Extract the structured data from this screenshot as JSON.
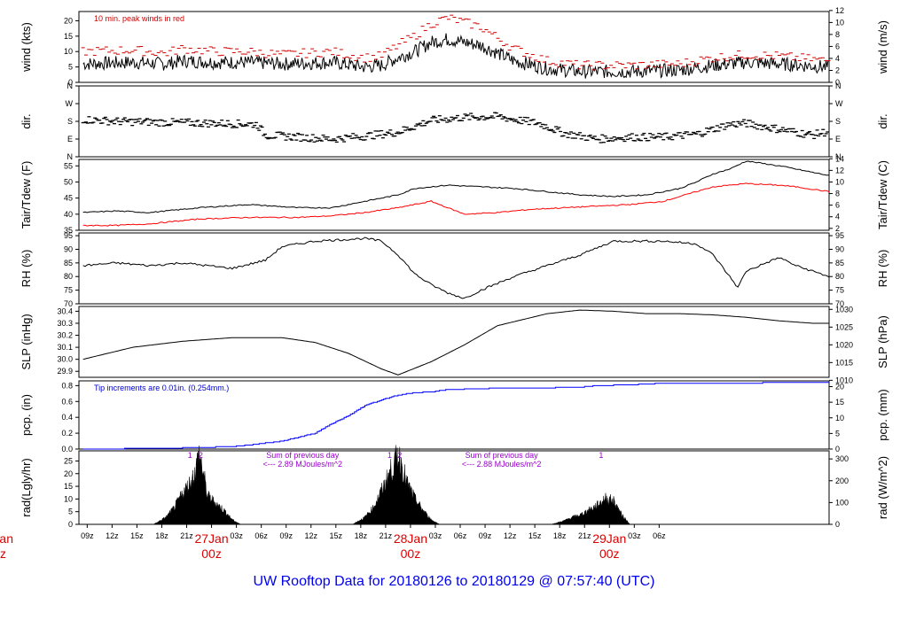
{
  "chart_data": {
    "type": "line",
    "title": "UW Rooftop Data for 20180126  to  20180129 @ 07:57:40  (UTC)",
    "x_hour_labels": [
      "09z",
      "12z",
      "15z",
      "18z",
      "21z",
      "00z",
      "03z",
      "06z",
      "09z",
      "12z",
      "15z",
      "18z",
      "21z",
      "00z",
      "03z",
      "06z",
      "09z",
      "12z",
      "15z",
      "18z",
      "21z",
      "00z",
      "03z",
      "06z"
    ],
    "date_labels": [
      {
        "day": "27Jan",
        "hour": "00z"
      },
      {
        "day": "28Jan",
        "hour": "00z"
      },
      {
        "day": "29Jan",
        "hour": "00z"
      }
    ],
    "cut_label": {
      "day": "Jan",
      "hour": "z"
    },
    "panels": [
      {
        "id": "wind",
        "ylabel": "wind (kts)",
        "ylabel_right": "wind (m/s)",
        "ylim": [
          0,
          23
        ],
        "left_ticks": [
          0,
          5,
          10,
          15,
          20
        ],
        "right_ticks": [
          0,
          2,
          4,
          6,
          8,
          10,
          12
        ],
        "right_scale": 1.944,
        "note": "10 min. peak winds in red",
        "note_color": "#d00000",
        "series": [
          {
            "name": "wind",
            "color": "#000000",
            "hours": [
              0,
              6,
              10,
              12,
              16,
              20,
              24,
              30,
              34,
              36,
              38,
              40,
              42,
              44,
              48,
              52,
              56,
              60,
              66,
              72,
              76,
              80,
              84,
              90
            ],
            "values": [
              6,
              6.5,
              6,
              7,
              6.5,
              6.5,
              6,
              6.5,
              5,
              5.5,
              8,
              10,
              13,
              14,
              12,
              7,
              4.5,
              3.5,
              3.5,
              4,
              5.5,
              6.5,
              6,
              5
            ]
          },
          {
            "name": "10 min. peak winds",
            "color": "#d00000",
            "hours": [
              0,
              6,
              10,
              12,
              16,
              20,
              24,
              30,
              34,
              36,
              38,
              40,
              42,
              44,
              48,
              52,
              56,
              60,
              66,
              72,
              76,
              80,
              84,
              90
            ],
            "values": [
              10,
              10.5,
              9.5,
              11,
              10,
              10,
              9,
              10,
              8,
              8.5,
              12,
              15,
              19,
              21,
              18,
              11,
              7,
              5.5,
              5.5,
              6,
              8,
              9,
              8.5,
              7
            ]
          }
        ]
      },
      {
        "id": "dir",
        "ylabel": "dir.",
        "ylabel_right": "dir.",
        "ylim": [
          0,
          360
        ],
        "left_tick_labels": [
          {
            "v": 0,
            "t": "N"
          },
          {
            "v": 90,
            "t": "E"
          },
          {
            "v": 180,
            "t": "S"
          },
          {
            "v": 270,
            "t": "W"
          },
          {
            "v": 360,
            "t": "N"
          }
        ],
        "right_tick_labels": [
          {
            "v": 0,
            "t": "N"
          },
          {
            "v": 90,
            "t": "E"
          },
          {
            "v": 180,
            "t": "S"
          },
          {
            "v": 270,
            "t": "W"
          },
          {
            "v": 360,
            "t": "N"
          }
        ],
        "series": [
          {
            "name": "wind direction",
            "color": "#000000",
            "hours": [
              0,
              4,
              10,
              16,
              21,
              22,
              26,
              30,
              34,
              38,
              42,
              46,
              50,
              52,
              55,
              58,
              62,
              66,
              70,
              74,
              78,
              80,
              84,
              88,
              90
            ],
            "values": [
              190,
              180,
              175,
              170,
              165,
              110,
              100,
              90,
              105,
              125,
              185,
              200,
              205,
              190,
              170,
              120,
              90,
              100,
              100,
              115,
              165,
              170,
              140,
              110,
              130
            ]
          }
        ]
      },
      {
        "id": "temp",
        "ylabel": "Tair/Tdew (F)",
        "ylabel_right": "Tair/Tdew (C)",
        "ylim": [
          35,
          57
        ],
        "left_ticks": [
          35,
          40,
          45,
          50,
          55
        ],
        "right_ticks": [
          2,
          4,
          6,
          8,
          10,
          12,
          14
        ],
        "series": [
          {
            "name": "Tair",
            "color": "#000000",
            "hours": [
              0,
              4,
              8,
              14,
              20,
              26,
              30,
              34,
              38,
              40,
              44,
              48,
              52,
              56,
              60,
              64,
              68,
              72,
              74,
              76,
              78,
              80,
              84,
              86,
              90
            ],
            "values": [
              40.5,
              41,
              40.5,
              42,
              43,
              42,
              42,
              44,
              46,
              48,
              49,
              48.5,
              48,
              47,
              46,
              45.5,
              46,
              48,
              50,
              52.5,
              54,
              56.5,
              55,
              54,
              52
            ]
          },
          {
            "name": "Tdew",
            "color": "#ff0000",
            "hours": [
              0,
              4,
              8,
              14,
              20,
              26,
              30,
              34,
              38,
              40,
              42,
              46,
              50,
              54,
              58,
              62,
              66,
              70,
              74,
              76,
              78,
              80,
              84,
              86,
              90
            ],
            "values": [
              36.5,
              36.5,
              37,
              38.5,
              39,
              39,
              39.5,
              40.5,
              42,
              43,
              44,
              40,
              40.5,
              41.5,
              42,
              42.5,
              43,
              44,
              47,
              48.5,
              49,
              49.5,
              49,
              48.5,
              47
            ]
          }
        ]
      },
      {
        "id": "rh",
        "ylabel": "RH (%)",
        "ylabel_right": "RH (%)",
        "ylim": [
          70,
          96
        ],
        "left_ticks": [
          70,
          75,
          80,
          85,
          90,
          95
        ],
        "right_ticks": [
          70,
          75,
          80,
          85,
          90,
          95
        ],
        "series": [
          {
            "name": "RH",
            "color": "#000000",
            "hours": [
              0,
              4,
              8,
              12,
              18,
              22,
              24,
              28,
              34,
              36,
              38,
              40,
              42,
              44,
              46,
              48,
              52,
              56,
              60,
              64,
              70,
              74,
              76,
              79,
              80,
              84,
              86,
              90
            ],
            "values": [
              84,
              85,
              84,
              85,
              83,
              86,
              91,
              93,
              94,
              93,
              88,
              81,
              77,
              74,
              72,
              75,
              80,
              84,
              88,
              93,
              93,
              92,
              88,
              76,
              82,
              87,
              84,
              80
            ]
          }
        ]
      },
      {
        "id": "slp",
        "ylabel": "SLP (inHg)",
        "ylabel_right": "SLP (hPa)",
        "ylim": [
          29.85,
          30.44
        ],
        "left_ticks": [
          29.9,
          30.0,
          30.1,
          30.2,
          30.3,
          30.4
        ],
        "right_ticks": [
          1010,
          1015,
          1020,
          1025,
          1030
        ],
        "series": [
          {
            "name": "SLP",
            "color": "#000000",
            "hours": [
              0,
              6,
              12,
              18,
              24,
              28,
              32,
              36,
              38,
              42,
              46,
              50,
              56,
              60,
              64,
              68,
              72,
              76,
              80,
              84,
              88,
              90
            ],
            "values": [
              30.0,
              30.1,
              30.15,
              30.18,
              30.18,
              30.14,
              30.05,
              29.92,
              29.87,
              29.98,
              30.12,
              30.28,
              30.38,
              30.41,
              30.4,
              30.38,
              30.38,
              30.37,
              30.35,
              30.32,
              30.3,
              30.3
            ]
          }
        ]
      },
      {
        "id": "pcp",
        "ylabel": "pcp. (in)",
        "ylabel_right": "pcp. (mm)",
        "ylim": [
          0,
          0.86
        ],
        "left_ticks": [
          0.0,
          0.2,
          0.4,
          0.6,
          0.8
        ],
        "right_ticks": [
          0,
          5,
          10,
          15,
          20
        ],
        "note": "Tip increments are 0.01in. (0.254mm.)",
        "note_color": "#0000cc",
        "series": [
          {
            "name": "precipitation",
            "color": "#0000ff",
            "hours": [
              0,
              10,
              14,
              18,
              20,
              24,
              28,
              30,
              32,
              34,
              36,
              38,
              40,
              42,
              44,
              48,
              50,
              54,
              60,
              62,
              66,
              70,
              80,
              84,
              90
            ],
            "values": [
              0,
              0.01,
              0.02,
              0.03,
              0.05,
              0.1,
              0.2,
              0.32,
              0.42,
              0.55,
              0.62,
              0.68,
              0.71,
              0.72,
              0.75,
              0.76,
              0.77,
              0.77,
              0.78,
              0.8,
              0.81,
              0.83,
              0.83,
              0.84,
              0.84
            ]
          }
        ]
      },
      {
        "id": "rad",
        "ylabel": "rad(Lgly/hr)",
        "ylabel_right": "rad (W/m^2)",
        "ylim": [
          0,
          29
        ],
        "left_ticks": [
          0,
          5,
          10,
          15,
          20,
          25
        ],
        "right_ticks": [
          0,
          100,
          200,
          300
        ],
        "right_tick_values_in_left_units": [
          0,
          8.6,
          17.2,
          25.8
        ],
        "days": [
          {
            "hours": [
              8.5,
              10,
              11,
              12,
              13,
              13.5,
              14,
              14.5,
              15,
              16,
              17,
              18,
              19
            ],
            "values": [
              0,
              3,
              7,
              13,
              18,
              22,
              30,
              22,
              12,
              9,
              6,
              2,
              0
            ],
            "marks": [
              "1",
              "2"
            ],
            "mark_hours": [
              12.9,
              14.2
            ],
            "note": "Sum of previous day\n<--- 2.89 MJoules/m^2"
          },
          {
            "hours": [
              32.5,
              34,
              35,
              36,
              37,
              37.5,
              38,
              38.5,
              39,
              40,
              41,
              42,
              43
            ],
            "values": [
              0,
              3,
              7,
              14,
              22,
              25,
              30,
              25,
              18,
              11,
              6,
              2,
              0
            ],
            "marks": [
              "1",
              "2"
            ],
            "mark_hours": [
              37.0,
              38.2
            ],
            "note": "Sum of previous day\n<--- 2.88 MJoules/m^2"
          },
          {
            "hours": [
              56.5,
              58,
              59,
              60,
              61,
              62,
              63,
              64,
              65,
              66
            ],
            "values": [
              0,
              1.5,
              3,
              4,
              6,
              8,
              11,
              10,
              4,
              0
            ],
            "marks": [
              "1"
            ],
            "mark_hours": [
              62.5
            ],
            "note": ""
          }
        ]
      }
    ]
  }
}
